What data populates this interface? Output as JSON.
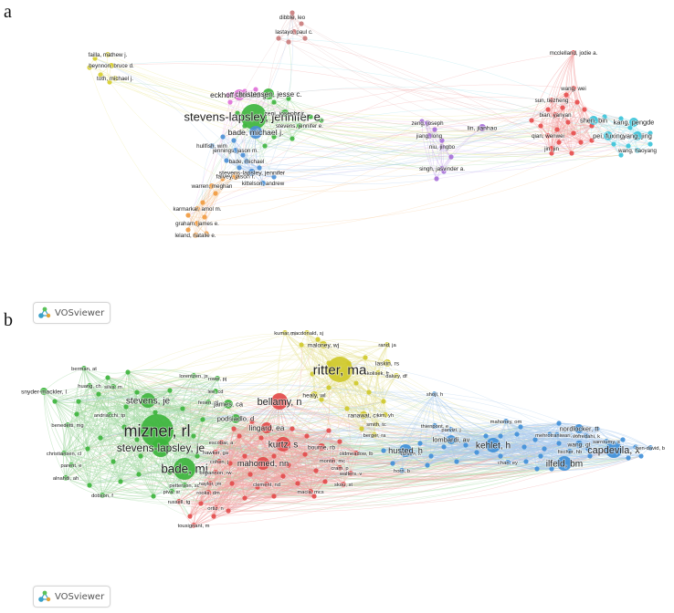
{
  "panels": [
    {
      "letter": "a",
      "badge": "VOSviewer",
      "clusters": [
        {
          "color": "#e74c4c",
          "line": "#f3a3a3"
        },
        {
          "color": "#3fb53f",
          "line": "#9ed89e"
        },
        {
          "color": "#4a8fd6",
          "line": "#a9c9ee"
        },
        {
          "color": "#d6cd28",
          "line": "#ece68c"
        },
        {
          "color": "#a66fd8",
          "line": "#d2b6ef"
        },
        {
          "color": "#39c3d9",
          "line": "#9fe2ec"
        },
        {
          "color": "#f19a3e",
          "line": "#f8cb9b"
        },
        {
          "color": "#c97b7b",
          "line": "#e4bcbc"
        },
        {
          "color": "#e070d8",
          "line": "#f0b6ec"
        }
      ],
      "nodes": [
        {
          "label": "dibble, leo",
          "c": 7,
          "s": 3
        },
        {
          "label": "lastayo, paul c.",
          "c": 7,
          "s": 3
        },
        {
          "label": "failla, mathew j.",
          "c": 3,
          "s": 3
        },
        {
          "label": "beynnon, bruce d.",
          "c": 3,
          "s": 3
        },
        {
          "label": "toth, michael j.",
          "c": 3,
          "s": 3
        },
        {
          "label": "eckhoff, donald g.",
          "c": 8,
          "s": 6
        },
        {
          "label": "christensen, jesse c.",
          "c": 1,
          "s": 6
        },
        {
          "label": "stevens-lapsley, jennifer e.",
          "c": 1,
          "s": 14
        },
        {
          "label": "zeni, joseph, jr.",
          "c": 1,
          "s": 4
        },
        {
          "label": "bade, michael j.",
          "c": 2,
          "s": 7
        },
        {
          "label": "stevens, jennifer e.",
          "c": 1,
          "s": 3
        },
        {
          "label": "hullfish, wim",
          "c": 2,
          "s": 3
        },
        {
          "label": "jennings, jason m.",
          "c": 2,
          "s": 3
        },
        {
          "label": "bade, michael",
          "c": 2,
          "s": 3
        },
        {
          "label": "falvey, jason r.",
          "c": 6,
          "s": 4
        },
        {
          "label": "stevens-lapsley, jennifer",
          "c": 2,
          "s": 4
        },
        {
          "label": "kittelson, andrew",
          "c": 2,
          "s": 3
        },
        {
          "label": "warren, meghan",
          "c": 6,
          "s": 3
        },
        {
          "label": "karmarkar, amol m.",
          "c": 6,
          "s": 3
        },
        {
          "label": "graham, james e.",
          "c": 6,
          "s": 3
        },
        {
          "label": "leland, natalie e.",
          "c": 6,
          "s": 3
        },
        {
          "label": "zeng, joseph",
          "c": 4,
          "s": 3
        },
        {
          "label": "jiang, long",
          "c": 4,
          "s": 3
        },
        {
          "label": "lin, jianhao",
          "c": 4,
          "s": 4
        },
        {
          "label": "niu, jingbo",
          "c": 4,
          "s": 3
        },
        {
          "label": "singh, jasvinder a.",
          "c": 4,
          "s": 3
        },
        {
          "label": "mcclelland, jodie a.",
          "c": 0,
          "s": 3
        },
        {
          "label": "wang, wei",
          "c": 0,
          "s": 3
        },
        {
          "label": "sun, tiezheng",
          "c": 0,
          "s": 3
        },
        {
          "label": "bian, yanyan",
          "c": 0,
          "s": 3
        },
        {
          "label": "qian, wenwei",
          "c": 0,
          "s": 3
        },
        {
          "label": "jin, jin",
          "c": 0,
          "s": 3
        },
        {
          "label": "shen, bin",
          "c": 5,
          "s": 5
        },
        {
          "label": "kang, pengde",
          "c": 5,
          "s": 5
        },
        {
          "label": "pei, fuxing",
          "c": 5,
          "s": 5
        },
        {
          "label": "yang, jing",
          "c": 5,
          "s": 5
        },
        {
          "label": "wang, haoyang",
          "c": 5,
          "s": 3
        }
      ]
    },
    {
      "letter": "b",
      "badge": "VOSviewer",
      "clusters": [
        {
          "color": "#e24a4a",
          "line": "#f2a0a0"
        },
        {
          "color": "#3cb43c",
          "line": "#a2d9a2"
        },
        {
          "color": "#3f8fd8",
          "line": "#aacbee"
        },
        {
          "color": "#cfc92a",
          "line": "#e8e49a"
        }
      ],
      "nodes": [
        {
          "label": "kumar, pj",
          "c": 3,
          "s": 3
        },
        {
          "label": "macdonald, sj",
          "c": 3,
          "s": 3
        },
        {
          "label": "maloney, wj",
          "c": 3,
          "s": 4
        },
        {
          "label": "rand, ja",
          "c": 3,
          "s": 3
        },
        {
          "label": "ritter, ma",
          "c": 3,
          "s": 14
        },
        {
          "label": "laskin, rs",
          "c": 3,
          "s": 4
        },
        {
          "label": "kolisek, fr",
          "c": 3,
          "s": 3
        },
        {
          "label": "dalury, df",
          "c": 3,
          "s": 3
        },
        {
          "label": "healy, wl",
          "c": 3,
          "s": 4
        },
        {
          "label": "ranawat, cs",
          "c": 3,
          "s": 4
        },
        {
          "label": "kim, yh",
          "c": 3,
          "s": 3
        },
        {
          "label": "smith, tc",
          "c": 3,
          "s": 3
        },
        {
          "label": "berger, ra",
          "c": 3,
          "s": 3
        },
        {
          "label": "berman, at",
          "c": 1,
          "s": 3
        },
        {
          "label": "huang, ch",
          "c": 1,
          "s": 3
        },
        {
          "label": "silva, m",
          "c": 1,
          "s": 3
        },
        {
          "label": "lorentzen, js",
          "c": 1,
          "s": 3
        },
        {
          "label": "rowe, pj",
          "c": 1,
          "s": 3
        },
        {
          "label": "snyder-mackler, l",
          "c": 1,
          "s": 4
        },
        {
          "label": "stevens, je",
          "c": 1,
          "s": 8
        },
        {
          "label": "lee, cd",
          "c": 1,
          "s": 3
        },
        {
          "label": "fesen, dl",
          "c": 1,
          "s": 3
        },
        {
          "label": "james, ca",
          "c": 1,
          "s": 5
        },
        {
          "label": "bellamy, n",
          "c": 0,
          "s": 9
        },
        {
          "label": "andriacchi, tp",
          "c": 1,
          "s": 3
        },
        {
          "label": "podsiadlo, d",
          "c": 1,
          "s": 5
        },
        {
          "label": "benedetti, mg",
          "c": 1,
          "s": 3
        },
        {
          "label": "mizner, rl",
          "c": 1,
          "s": 18
        },
        {
          "label": "lingard, ea",
          "c": 0,
          "s": 6
        },
        {
          "label": "kurtz, s",
          "c": 0,
          "s": 8
        },
        {
          "label": "stevens-lapsley, je",
          "c": 1,
          "s": 10
        },
        {
          "label": "escobar, a",
          "c": 0,
          "s": 3
        },
        {
          "label": "hawker, ga",
          "c": 0,
          "s": 3
        },
        {
          "label": "cohen, j",
          "c": 0,
          "s": 3
        },
        {
          "label": "christiansen, cl",
          "c": 1,
          "s": 3
        },
        {
          "label": "parent, e",
          "c": 1,
          "s": 3
        },
        {
          "label": "bade, mj",
          "c": 1,
          "s": 12
        },
        {
          "label": "mahomed, nn",
          "c": 0,
          "s": 7
        },
        {
          "label": "bourne, rb",
          "c": 0,
          "s": 4
        },
        {
          "label": "montin, mc",
          "c": 0,
          "s": 3
        },
        {
          "label": "oldmeadow, lb",
          "c": 0,
          "s": 3
        },
        {
          "label": "cram, p",
          "c": 0,
          "s": 3
        },
        {
          "label": "alnahdi, ah",
          "c": 1,
          "s": 3
        },
        {
          "label": "bohannon, rw",
          "c": 0,
          "s": 3
        },
        {
          "label": "naylor, jm",
          "c": 0,
          "s": 3
        },
        {
          "label": "petterson, sc",
          "c": 1,
          "s": 3
        },
        {
          "label": "rooks, dm",
          "c": 0,
          "s": 3
        },
        {
          "label": "piva, sr",
          "c": 1,
          "s": 3
        },
        {
          "label": "clement, nd",
          "c": 0,
          "s": 3
        },
        {
          "label": "walters, v",
          "c": 0,
          "s": 3
        },
        {
          "label": "skou, st",
          "c": 0,
          "s": 3
        },
        {
          "label": "dobson, f",
          "c": 1,
          "s": 3
        },
        {
          "label": "russell, tg",
          "c": 0,
          "s": 3
        },
        {
          "label": "ortiz, n",
          "c": 0,
          "s": 3
        },
        {
          "label": "macia, mcs",
          "c": 0,
          "s": 3
        },
        {
          "label": "tousignant, m",
          "c": 0,
          "s": 3
        },
        {
          "label": "shoji, h",
          "c": 2,
          "s": 3
        },
        {
          "label": "thienpont, e",
          "c": 2,
          "s": 3
        },
        {
          "label": "parvizi, j",
          "c": 2,
          "s": 3
        },
        {
          "label": "larsen, k",
          "c": 2,
          "s": 3
        },
        {
          "label": "husted, h",
          "c": 2,
          "s": 7
        },
        {
          "label": "lombardi, av",
          "c": 2,
          "s": 5
        },
        {
          "label": "kehlet, h",
          "c": 2,
          "s": 8
        },
        {
          "label": "horn, b",
          "c": 2,
          "s": 3
        },
        {
          "label": "mahoney, om",
          "c": 2,
          "s": 3
        },
        {
          "label": "nordlocker, tt",
          "c": 2,
          "s": 5
        },
        {
          "label": "mehrotraniwari, av",
          "c": 2,
          "s": 3
        },
        {
          "label": "vofredahi, k",
          "c": 2,
          "s": 3
        },
        {
          "label": "sarroumy, s",
          "c": 2,
          "s": 3
        },
        {
          "label": "capdevila, x",
          "c": 2,
          "s": 9
        },
        {
          "label": "ben-david, b",
          "c": 2,
          "s": 3
        },
        {
          "label": "fischer, hb",
          "c": 2,
          "s": 3
        },
        {
          "label": "wang, gt",
          "c": 2,
          "s": 4
        },
        {
          "label": "ilfeld, bm",
          "c": 2,
          "s": 8
        },
        {
          "label": "chan, ey",
          "c": 2,
          "s": 3
        }
      ]
    }
  ]
}
